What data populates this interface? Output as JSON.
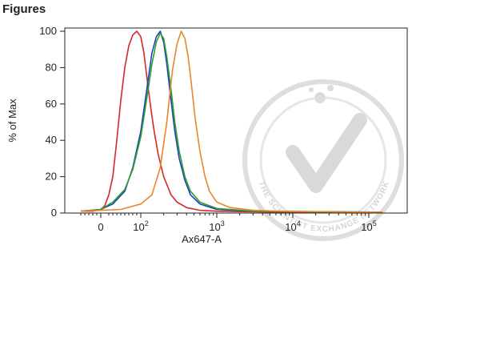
{
  "page": {
    "heading": "Figures"
  },
  "watermark": {
    "text": "THE SCIENTIST EXCHANGE NETWORK"
  },
  "chart_data": {
    "type": "line",
    "title": "",
    "xlabel": "Ax647-A",
    "ylabel": "% of Max",
    "x_scale": "biexponential",
    "xlim": [
      -60,
      180000
    ],
    "ylim": [
      0,
      100
    ],
    "y_ticks": [
      0,
      20,
      40,
      60,
      80,
      100
    ],
    "y_tick_labels": [
      "0",
      "20",
      "40",
      "60",
      "80",
      "100"
    ],
    "x_ticks": [
      {
        "value": 0,
        "base": "0",
        "exp": ""
      },
      {
        "value": 100,
        "base": "10",
        "exp": "2"
      },
      {
        "value": 1000,
        "base": "10",
        "exp": "3"
      },
      {
        "value": 10000,
        "base": "10",
        "exp": "4"
      },
      {
        "value": 100000,
        "base": "10",
        "exp": "5"
      }
    ],
    "grid": false,
    "legend": "none",
    "series": [
      {
        "color": "#d62728",
        "x": [
          -50,
          -20,
          0,
          10,
          20,
          30,
          40,
          50,
          60,
          70,
          80,
          90,
          100,
          110,
          120,
          135,
          150,
          170,
          200,
          250,
          300,
          400,
          600,
          1000,
          2000,
          10000,
          150000
        ],
        "y": [
          1,
          1,
          2,
          4,
          10,
          20,
          40,
          62,
          80,
          92,
          98,
          100,
          97,
          88,
          75,
          58,
          45,
          32,
          20,
          10,
          6,
          3,
          1.5,
          1,
          0.8,
          0.5,
          0.5
        ]
      },
      {
        "color": "#1f3fbf",
        "x": [
          -50,
          0,
          30,
          60,
          80,
          100,
          120,
          140,
          160,
          180,
          200,
          220,
          250,
          280,
          320,
          380,
          450,
          600,
          1000,
          3000,
          150000
        ],
        "y": [
          1,
          2,
          5,
          12,
          25,
          45,
          68,
          88,
          97,
          100,
          94,
          82,
          62,
          45,
          30,
          18,
          10,
          5,
          2,
          1,
          0.5
        ]
      },
      {
        "color": "#2ca02c",
        "x": [
          -50,
          0,
          30,
          60,
          80,
          100,
          120,
          140,
          160,
          180,
          200,
          220,
          250,
          280,
          320,
          380,
          450,
          600,
          1000,
          3000,
          150000
        ],
        "y": [
          1,
          2,
          6,
          13,
          24,
          42,
          63,
          82,
          94,
          99,
          96,
          86,
          68,
          50,
          34,
          20,
          12,
          6,
          2.5,
          1,
          0.5
        ]
      },
      {
        "color": "#e8862a",
        "x": [
          -50,
          50,
          100,
          140,
          180,
          220,
          260,
          300,
          340,
          380,
          420,
          460,
          520,
          600,
          700,
          800,
          1000,
          1500,
          3000,
          10000,
          150000
        ],
        "y": [
          1,
          2,
          5,
          10,
          25,
          50,
          78,
          93,
          100,
          96,
          86,
          72,
          52,
          34,
          20,
          12,
          6,
          3,
          1.5,
          0.8,
          0.5
        ]
      }
    ]
  }
}
